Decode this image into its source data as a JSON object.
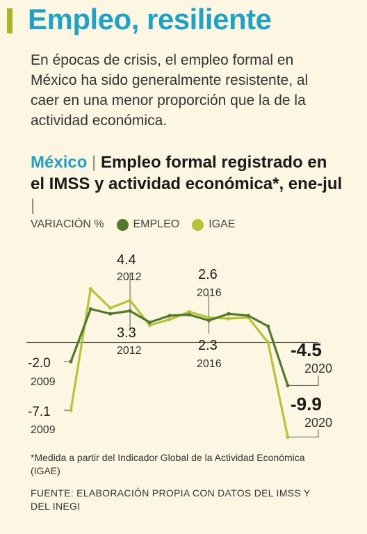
{
  "header": {
    "title": "Empleo, resiliente",
    "intro": "En épocas de crisis, el empleo formal en México ha sido generalmente resistente, al caer en una menor proporción que la de la actividad económica.",
    "country": "México",
    "chart_title": "Empleo formal registrado en el IMSS y actividad económica*, ene-jul",
    "separator": "|"
  },
  "legend": {
    "unit_label": "VARIACIÓN %",
    "empleo_label": "EMPLEO",
    "igae_label": "IGAE"
  },
  "chart_data": {
    "type": "line",
    "x": [
      2009,
      2010,
      2011,
      2012,
      2013,
      2014,
      2015,
      2016,
      2017,
      2018,
      2019,
      2020
    ],
    "series": [
      {
        "name": "EMPLEO",
        "color": "#4f7a2a",
        "values": [
          -2.0,
          3.5,
          3.0,
          3.3,
          2.1,
          2.8,
          2.9,
          2.3,
          3.0,
          2.8,
          1.7,
          -4.5
        ]
      },
      {
        "name": "IGAE",
        "color": "#b5c436",
        "values": [
          -7.1,
          5.6,
          3.6,
          4.4,
          1.8,
          2.4,
          3.2,
          2.6,
          2.5,
          2.6,
          0.0,
          -9.9
        ]
      }
    ],
    "annotations": [
      {
        "value": "-2.0",
        "year": "2009",
        "series": "EMPLEO",
        "x": 2009
      },
      {
        "value": "-7.1",
        "year": "2009",
        "series": "IGAE",
        "x": 2009
      },
      {
        "value": "4.4",
        "year": "2012",
        "series": "IGAE",
        "x": 2012
      },
      {
        "value": "3.3",
        "year": "2012",
        "series": "EMPLEO",
        "x": 2012
      },
      {
        "value": "2.6",
        "year": "2016",
        "series": "IGAE",
        "x": 2016
      },
      {
        "value": "2.3",
        "year": "2016",
        "series": "EMPLEO",
        "x": 2016
      },
      {
        "value": "-4.5",
        "year": "2020",
        "series": "EMPLEO",
        "x": 2020
      },
      {
        "value": "-9.9",
        "year": "2020",
        "series": "IGAE",
        "x": 2020
      }
    ],
    "ylim": [
      -10,
      6
    ],
    "zero_line": true,
    "grid": false
  },
  "footer": {
    "footnote": "*Medida a partir del Indicador Global de la Actividad Económica (IGAE)",
    "source": "FUENTE: ELABORACIÓN PROPIA CON DATOS DEL IMSS Y DEL INEGI"
  }
}
